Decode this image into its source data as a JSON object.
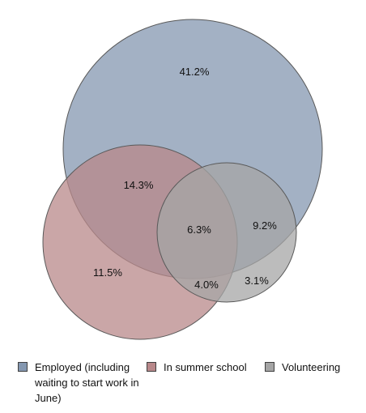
{
  "chart_data": {
    "type": "venn",
    "sets": [
      {
        "name": "Employed (including waiting to start work in June)",
        "color": "#8497b0"
      },
      {
        "name": "In summer school",
        "color": "#b8888a"
      },
      {
        "name": "Volunteering",
        "color": "#a5a5a5"
      }
    ],
    "regions": [
      {
        "sets": [
          "Employed"
        ],
        "label": "41.2%",
        "value": 41.2
      },
      {
        "sets": [
          "Employed",
          "In summer school"
        ],
        "label": "14.3%",
        "value": 14.3
      },
      {
        "sets": [
          "Employed",
          "In summer school",
          "Volunteering"
        ],
        "label": "6.3%",
        "value": 6.3
      },
      {
        "sets": [
          "Employed",
          "Volunteering"
        ],
        "label": "9.2%",
        "value": 9.2
      },
      {
        "sets": [
          "In summer school"
        ],
        "label": "11.5%",
        "value": 11.5
      },
      {
        "sets": [
          "In summer school",
          "Volunteering"
        ],
        "label": "4.0%",
        "value": 4.0
      },
      {
        "sets": [
          "Volunteering"
        ],
        "label": "3.1%",
        "value": 3.1
      }
    ]
  },
  "legend": {
    "employed": "Employed (including waiting to start work in June)",
    "summer": "In summer school",
    "volunteering": "Volunteering"
  }
}
